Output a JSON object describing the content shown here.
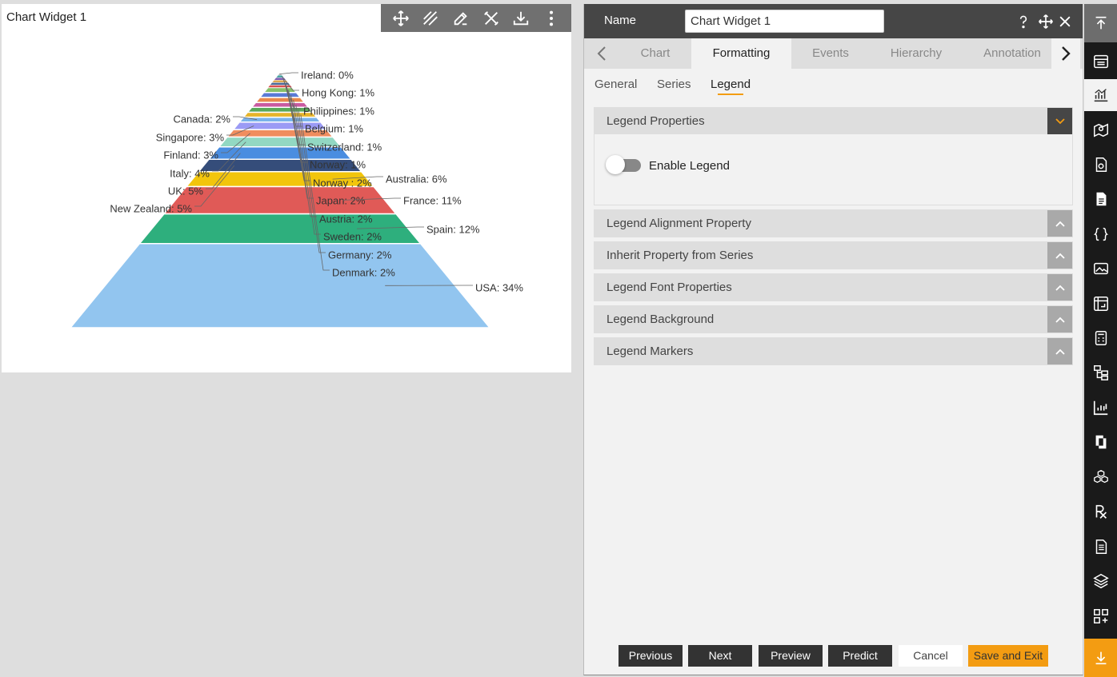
{
  "widget": {
    "title": "Chart Widget 1",
    "toolbar": [
      {
        "name": "move-icon"
      },
      {
        "name": "draw-icon"
      },
      {
        "name": "edit-icon"
      },
      {
        "name": "tools-icon"
      },
      {
        "name": "download-icon"
      },
      {
        "name": "more-vertical-icon"
      }
    ]
  },
  "chart_data": {
    "type": "pyramid",
    "legend": "none",
    "slices": [
      {
        "label": "USA",
        "value": 34,
        "color": "#92c5ef"
      },
      {
        "label": "Spain",
        "value": 12,
        "color": "#2eaf7d"
      },
      {
        "label": "France",
        "value": 11,
        "color": "#e05a57"
      },
      {
        "label": "Australia",
        "value": 6,
        "color": "#f2c50c"
      },
      {
        "label": "New Zealand",
        "value": 5,
        "color": "#354d7a"
      },
      {
        "label": "UK",
        "value": 5,
        "color": "#4a8de0"
      },
      {
        "label": "Italy",
        "value": 4,
        "color": "#92d8c2"
      },
      {
        "label": "Finland",
        "value": 3,
        "color": "#f08d5e"
      },
      {
        "label": "Singapore",
        "value": 3,
        "color": "#9b9bf5"
      },
      {
        "label": "Canada",
        "value": 2,
        "color": "#7ab3ea"
      },
      {
        "label": "Denmark",
        "value": 2,
        "color": "#e6b42a"
      },
      {
        "label": "Germany",
        "value": 2,
        "color": "#5aa85a"
      },
      {
        "label": "Sweden",
        "value": 2,
        "color": "#c95aa0"
      },
      {
        "label": "Austria",
        "value": 2,
        "color": "#e8884d"
      },
      {
        "label": "Japan",
        "value": 2,
        "color": "#5a7ad6"
      },
      {
        "label": "Norway ",
        "value": 2,
        "color": "#86c06a"
      },
      {
        "label": "Norway",
        "value": 1,
        "color": "#d94f4f"
      },
      {
        "label": "Switzerland",
        "value": 1,
        "color": "#4a6a9a"
      },
      {
        "label": "Belgium",
        "value": 1,
        "color": "#e0a850"
      },
      {
        "label": "Philippines",
        "value": 1,
        "color": "#7a5ab0"
      },
      {
        "label": "Hong Kong",
        "value": 1,
        "color": "#40a0a0"
      },
      {
        "label": "Ireland",
        "value": 0,
        "color": "#a0a0a0"
      }
    ],
    "labels": [
      {
        "text": "Ireland: 0%"
      },
      {
        "text": "Hong Kong: 1%"
      },
      {
        "text": "Philippines: 1%"
      },
      {
        "text": "Canada: 2%"
      },
      {
        "text": "Belgium: 1%"
      },
      {
        "text": "Singapore: 3%"
      },
      {
        "text": "Switzerland: 1%"
      },
      {
        "text": "Finland: 3%"
      },
      {
        "text": "Norway: 1%"
      },
      {
        "text": "Italy: 4%"
      },
      {
        "text": "Australia: 6%"
      },
      {
        "text": "Norway : 2%"
      },
      {
        "text": "UK: 5%"
      },
      {
        "text": "Japan: 2%"
      },
      {
        "text": "France: 11%"
      },
      {
        "text": "New Zealand: 5%"
      },
      {
        "text": "Austria: 2%"
      },
      {
        "text": "Spain: 12%"
      },
      {
        "text": "Sweden: 2%"
      },
      {
        "text": "Germany: 2%"
      },
      {
        "text": "Denmark: 2%"
      },
      {
        "text": "USA: 34%"
      }
    ]
  },
  "panel": {
    "name_label": "Name",
    "name_value": "Chart Widget 1",
    "tabs": [
      "Chart",
      "Formatting",
      "Events",
      "Hierarchy",
      "Annotation"
    ],
    "active_tab": "Formatting",
    "subtabs": [
      "General",
      "Series",
      "Legend"
    ],
    "active_subtab": "Legend",
    "sections": [
      {
        "title": "Legend Properties",
        "expanded": true
      },
      {
        "title": "Legend Alignment Property",
        "expanded": false
      },
      {
        "title": "Inherit Property from Series",
        "expanded": false
      },
      {
        "title": "Legend Font Properties",
        "expanded": false
      },
      {
        "title": "Legend Background",
        "expanded": false
      },
      {
        "title": "Legend Markers",
        "expanded": false
      }
    ],
    "enable_legend_label": "Enable Legend",
    "enable_legend": false,
    "buttons": {
      "previous": "Previous",
      "next": "Next",
      "preview": "Preview",
      "predict": "Predict",
      "cancel": "Cancel",
      "save_exit": "Save and Exit"
    }
  },
  "colors": {
    "accent": "#f39c12",
    "header": "#464646",
    "rail": "#1a1a1a"
  },
  "rail_icons": [
    "scroll-top-icon",
    "table-icon",
    "chart-icon",
    "map-icon",
    "report-icon",
    "document-icon",
    "code-icon",
    "image-icon",
    "pivot-icon",
    "calculator-icon",
    "hierarchy-icon",
    "bar-chart-icon",
    "pages-icon",
    "cubes-icon",
    "rx-icon",
    "file-list-icon",
    "layers-icon",
    "add-widget-icon",
    "scroll-bottom-icon"
  ]
}
